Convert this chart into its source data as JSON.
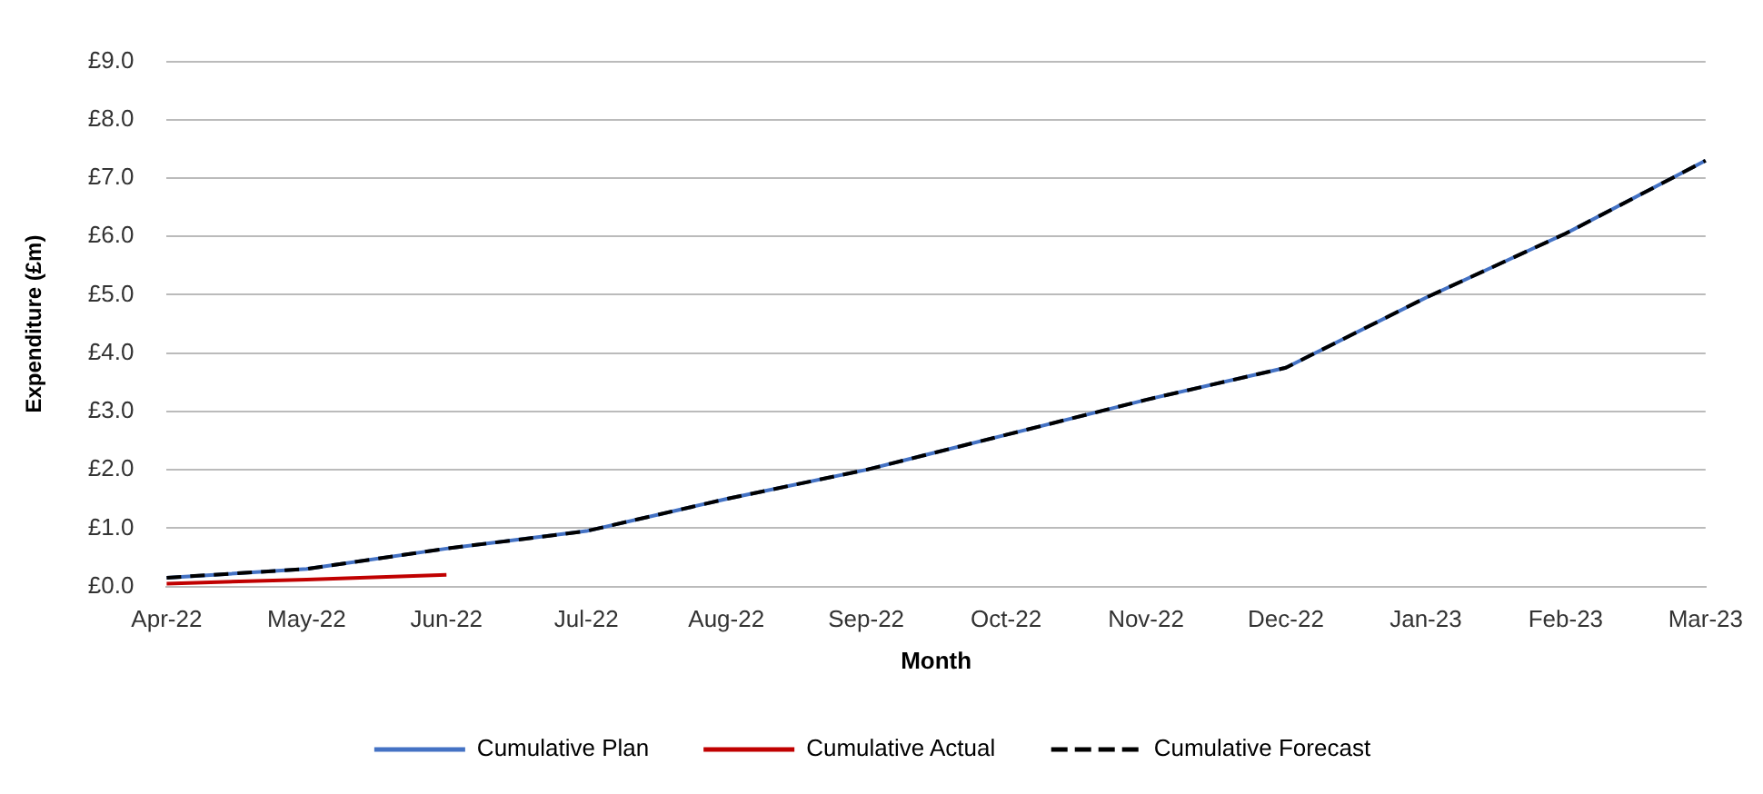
{
  "chart_data": {
    "type": "line",
    "xlabel": "Month",
    "ylabel": "Expenditure (£m)",
    "categories": [
      "Apr-22",
      "May-22",
      "Jun-22",
      "Jul-22",
      "Aug-22",
      "Sep-22",
      "Oct-22",
      "Nov-22",
      "Dec-22",
      "Jan-23",
      "Feb-23",
      "Mar-23"
    ],
    "series": [
      {
        "name": "Cumulative Plan",
        "color": "#4472c4",
        "line_style": "solid",
        "values": [
          0.15,
          0.3,
          0.65,
          0.95,
          1.5,
          2.0,
          2.6,
          3.2,
          3.75,
          4.95,
          6.05,
          7.3
        ]
      },
      {
        "name": "Cumulative Actual",
        "color": "#c00000",
        "line_style": "solid",
        "values": [
          0.05,
          0.12,
          0.2,
          null,
          null,
          null,
          null,
          null,
          null,
          null,
          null,
          null
        ]
      },
      {
        "name": "Cumulative Forecast",
        "color": "#000000",
        "line_style": "dashed",
        "values": [
          0.15,
          0.3,
          0.65,
          0.95,
          1.5,
          2.0,
          2.6,
          3.2,
          3.75,
          4.95,
          6.05,
          7.3
        ]
      }
    ],
    "ylim": [
      0,
      9
    ],
    "yticks": [
      {
        "value": 0,
        "label": "£0.0"
      },
      {
        "value": 1,
        "label": "£1.0"
      },
      {
        "value": 2,
        "label": "£2.0"
      },
      {
        "value": 3,
        "label": "£3.0"
      },
      {
        "value": 4,
        "label": "£4.0"
      },
      {
        "value": 5,
        "label": "£5.0"
      },
      {
        "value": 6,
        "label": "£6.0"
      },
      {
        "value": 7,
        "label": "£7.0"
      },
      {
        "value": 8,
        "label": "£8.0"
      },
      {
        "value": 9,
        "label": "£9.0"
      }
    ],
    "grid": "y",
    "legend": "bottom",
    "marker": "none"
  }
}
